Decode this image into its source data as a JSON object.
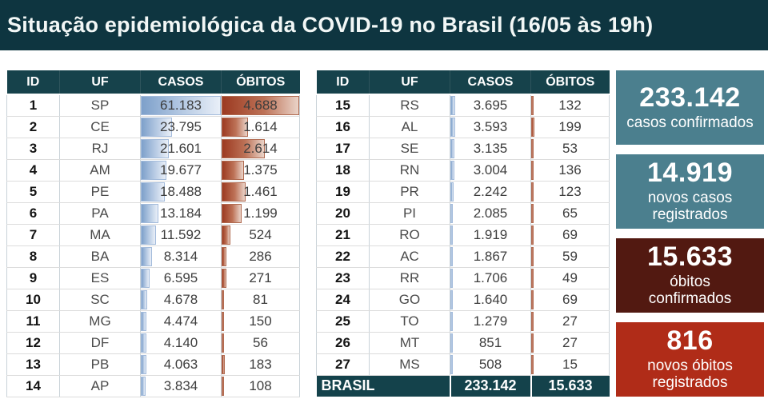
{
  "header": {
    "title": "Situação epidemiológica da COVID-19 no Brasil (16/05 às 19h)"
  },
  "chart_data": {
    "type": "table",
    "title": "Situação epidemiológica da COVID-19 no Brasil (16/05 às 19h)",
    "columns": [
      "ID",
      "UF",
      "CASOS",
      "ÓBITOS"
    ],
    "databar_max": {
      "casos": 61183,
      "obitos": 4688
    },
    "left_rows": [
      [
        1,
        "SP",
        61183,
        4688
      ],
      [
        2,
        "CE",
        23795,
        1614
      ],
      [
        3,
        "RJ",
        21601,
        2614
      ],
      [
        4,
        "AM",
        19677,
        1375
      ],
      [
        5,
        "PE",
        18488,
        1461
      ],
      [
        6,
        "PA",
        13184,
        1199
      ],
      [
        7,
        "MA",
        11592,
        524
      ],
      [
        8,
        "BA",
        8314,
        286
      ],
      [
        9,
        "ES",
        6595,
        271
      ],
      [
        10,
        "SC",
        4678,
        81
      ],
      [
        11,
        "MG",
        4474,
        150
      ],
      [
        12,
        "DF",
        4140,
        56
      ],
      [
        13,
        "PB",
        4063,
        183
      ],
      [
        14,
        "AP",
        3834,
        108
      ]
    ],
    "right_rows": [
      [
        15,
        "RS",
        3695,
        132
      ],
      [
        16,
        "AL",
        3593,
        199
      ],
      [
        17,
        "SE",
        3135,
        53
      ],
      [
        18,
        "RN",
        3004,
        136
      ],
      [
        19,
        "PR",
        2242,
        123
      ],
      [
        20,
        "PI",
        2085,
        65
      ],
      [
        21,
        "RO",
        1919,
        69
      ],
      [
        22,
        "AC",
        1867,
        59
      ],
      [
        23,
        "RR",
        1706,
        49
      ],
      [
        24,
        "GO",
        1640,
        69
      ],
      [
        25,
        "TO",
        1279,
        27
      ],
      [
        26,
        "MT",
        851,
        27
      ],
      [
        27,
        "MS",
        508,
        15
      ]
    ],
    "total_row": [
      "BRASIL",
      233142,
      15633
    ],
    "kpi_cards": [
      {
        "value": 233142,
        "label": "casos confirmados"
      },
      {
        "value": 14919,
        "label": "novos casos registrados"
      },
      {
        "value": 15633,
        "label": "óbitos confirmados"
      },
      {
        "value": 816,
        "label": "novos óbitos registrados"
      }
    ]
  },
  "total_row_display": {
    "label": "BRASIL",
    "casos": "233.142",
    "obitos": "15.633"
  },
  "cards": [
    {
      "value": "233.142",
      "label": "casos confirmados",
      "bg": "#4b7f8e"
    },
    {
      "value": "14.919",
      "label": "novos casos\nregistrados",
      "bg": "#4b7f8e"
    },
    {
      "value": "15.633",
      "label": "óbitos\nconfirmados",
      "bg": "#521911"
    },
    {
      "value": "816",
      "label": "novos óbitos\nregistrados",
      "bg": "#b02c18"
    }
  ],
  "colors": {
    "header_band": "#0e3540",
    "table_header_bg": "#16424b",
    "total_row_bg": "#14424b",
    "casos_bar": "#7da0ca",
    "obitos_bar": "#9c3a21",
    "card_teal": "#4b7f8e",
    "card_maroon": "#521911",
    "card_red": "#b02c18"
  }
}
